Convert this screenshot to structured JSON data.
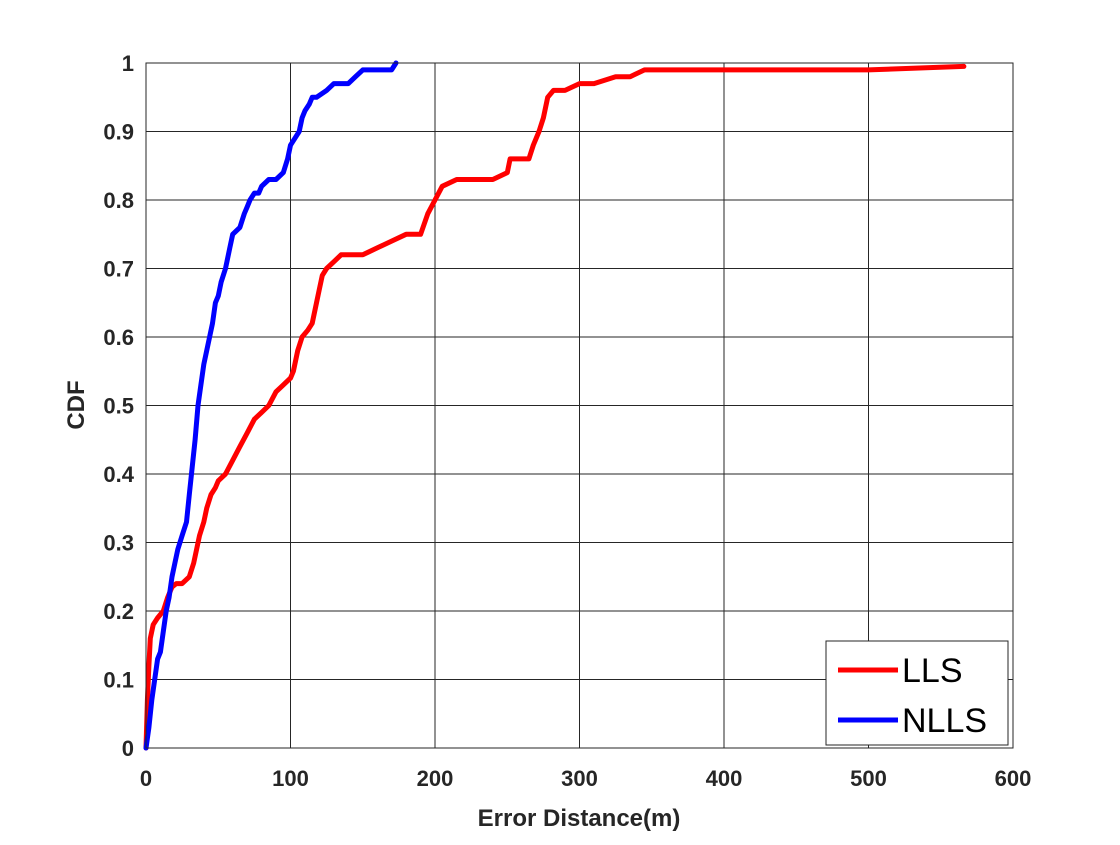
{
  "chart_data": {
    "type": "line",
    "title": "",
    "xlabel": "Error Distance(m)",
    "ylabel": "CDF",
    "xlim": [
      0,
      600
    ],
    "ylim": [
      0,
      1
    ],
    "xticks": [
      0,
      100,
      200,
      300,
      400,
      500,
      600
    ],
    "yticks": [
      0,
      0.1,
      0.2,
      0.3,
      0.4,
      0.5,
      0.6,
      0.7,
      0.8,
      0.9,
      1
    ],
    "xtick_labels": [
      "0",
      "100",
      "200",
      "300",
      "400",
      "500",
      "600"
    ],
    "ytick_labels": [
      "0",
      "0.1",
      "0.2",
      "0.3",
      "0.4",
      "0.5",
      "0.6",
      "0.7",
      "0.8",
      "0.9",
      "1"
    ],
    "grid": true,
    "legend": {
      "position": "bottom-right",
      "entries": [
        "LLS",
        "NLLS"
      ]
    },
    "series": [
      {
        "name": "LLS",
        "color": "#ff0000",
        "x": [
          0,
          1,
          2,
          3,
          5,
          8,
          12,
          15,
          18,
          21,
          25,
          30,
          33,
          35,
          37,
          40,
          42,
          45,
          48,
          50,
          55,
          60,
          65,
          70,
          75,
          80,
          85,
          90,
          95,
          100,
          102,
          105,
          108,
          112,
          115,
          118,
          120,
          122,
          125,
          130,
          135,
          140,
          150,
          160,
          170,
          180,
          190,
          195,
          200,
          205,
          215,
          225,
          240,
          250,
          252,
          265,
          268,
          272,
          275,
          278,
          282,
          290,
          300,
          310,
          325,
          335,
          345,
          400,
          500,
          566
        ],
        "y": [
          0,
          0.07,
          0.12,
          0.16,
          0.18,
          0.19,
          0.2,
          0.22,
          0.235,
          0.24,
          0.24,
          0.25,
          0.27,
          0.29,
          0.31,
          0.33,
          0.35,
          0.37,
          0.38,
          0.39,
          0.4,
          0.42,
          0.44,
          0.46,
          0.48,
          0.49,
          0.5,
          0.52,
          0.53,
          0.54,
          0.55,
          0.58,
          0.6,
          0.61,
          0.62,
          0.65,
          0.67,
          0.69,
          0.7,
          0.71,
          0.72,
          0.72,
          0.72,
          0.73,
          0.74,
          0.75,
          0.75,
          0.78,
          0.8,
          0.82,
          0.83,
          0.83,
          0.83,
          0.84,
          0.86,
          0.86,
          0.88,
          0.9,
          0.92,
          0.95,
          0.96,
          0.96,
          0.97,
          0.97,
          0.98,
          0.98,
          0.99,
          0.99,
          0.99,
          0.995
        ]
      },
      {
        "name": "NLLS",
        "color": "#0000ff",
        "x": [
          0,
          2,
          4,
          6,
          8,
          10,
          12,
          14,
          16,
          18,
          20,
          22,
          25,
          28,
          30,
          32,
          34,
          36,
          38,
          40,
          42,
          44,
          46,
          48,
          50,
          52,
          55,
          58,
          60,
          65,
          68,
          70,
          72,
          75,
          78,
          80,
          85,
          90,
          95,
          98,
          100,
          103,
          106,
          108,
          110,
          113,
          115,
          118,
          125,
          130,
          140,
          145,
          150,
          160,
          170,
          173
        ],
        "y": [
          0,
          0.03,
          0.07,
          0.1,
          0.13,
          0.14,
          0.17,
          0.2,
          0.22,
          0.25,
          0.27,
          0.29,
          0.31,
          0.33,
          0.37,
          0.41,
          0.45,
          0.5,
          0.53,
          0.56,
          0.58,
          0.6,
          0.62,
          0.65,
          0.66,
          0.68,
          0.7,
          0.73,
          0.75,
          0.76,
          0.78,
          0.79,
          0.8,
          0.81,
          0.81,
          0.82,
          0.83,
          0.83,
          0.84,
          0.86,
          0.88,
          0.89,
          0.9,
          0.92,
          0.93,
          0.94,
          0.95,
          0.95,
          0.96,
          0.97,
          0.97,
          0.98,
          0.99,
          0.99,
          0.99,
          1.0
        ]
      }
    ]
  }
}
